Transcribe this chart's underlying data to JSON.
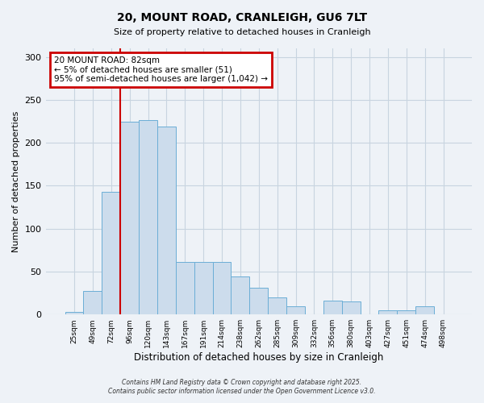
{
  "title": "20, MOUNT ROAD, CRANLEIGH, GU6 7LT",
  "subtitle": "Size of property relative to detached houses in Cranleigh",
  "xlabel": "Distribution of detached houses by size in Cranleigh",
  "ylabel": "Number of detached properties",
  "bar_labels": [
    "25sqm",
    "49sqm",
    "72sqm",
    "96sqm",
    "120sqm",
    "143sqm",
    "167sqm",
    "191sqm",
    "214sqm",
    "238sqm",
    "262sqm",
    "285sqm",
    "309sqm",
    "332sqm",
    "356sqm",
    "380sqm",
    "403sqm",
    "427sqm",
    "451sqm",
    "474sqm",
    "498sqm"
  ],
  "bar_values": [
    3,
    27,
    143,
    225,
    226,
    219,
    61,
    61,
    61,
    44,
    31,
    20,
    10,
    0,
    16,
    15,
    0,
    5,
    5,
    10,
    0
  ],
  "bar_color": "#ccdcec",
  "bar_edgecolor": "#6baed6",
  "bg_color": "#eef2f7",
  "grid_color": "#c8d4e0",
  "annotation_title": "20 MOUNT ROAD: 82sqm",
  "annotation_line1": "← 5% of detached houses are smaller (51)",
  "annotation_line2": "95% of semi-detached houses are larger (1,042) →",
  "annotation_box_color": "#ffffff",
  "annotation_border_color": "#cc0000",
  "vline_color": "#cc0000",
  "footer1": "Contains HM Land Registry data © Crown copyright and database right 2025.",
  "footer2": "Contains public sector information licensed under the Open Government Licence v3.0.",
  "ylim": [
    0,
    310
  ],
  "yticks": [
    0,
    50,
    100,
    150,
    200,
    250,
    300
  ]
}
